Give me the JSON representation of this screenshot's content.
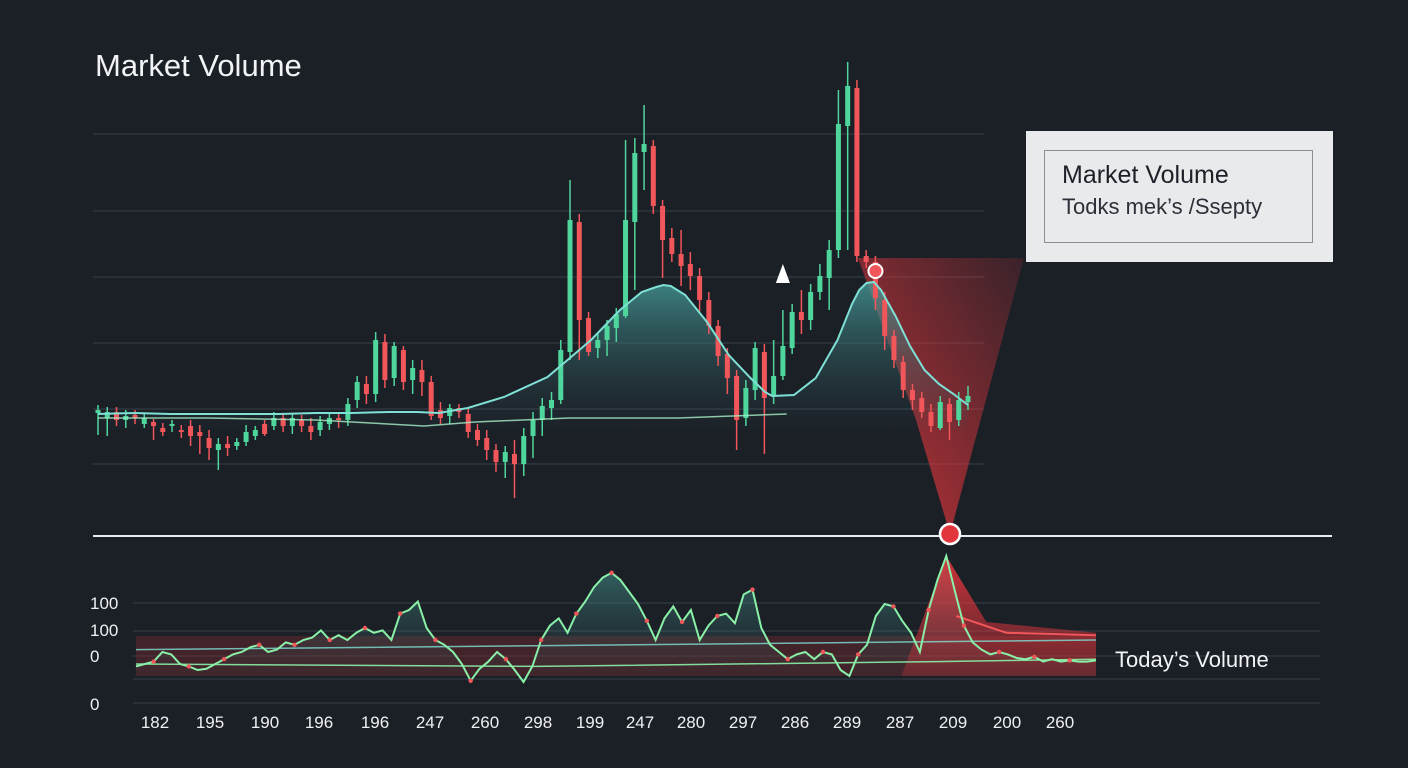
{
  "chart_data": {
    "type": "line",
    "title": "Market Volume",
    "price_panel": {
      "kind": "candlestick",
      "gridlines": true,
      "candles": [
        [
          413,
          410,
          405,
          435
        ],
        [
          418,
          412,
          407,
          436
        ],
        [
          412,
          420,
          407,
          426
        ],
        [
          420,
          416,
          410,
          428
        ],
        [
          415,
          418,
          410,
          424
        ],
        [
          424,
          418,
          413,
          428
        ],
        [
          422,
          426,
          419,
          440
        ],
        [
          428,
          432,
          423,
          436
        ],
        [
          426,
          424,
          420,
          432
        ],
        [
          430,
          432,
          425,
          438
        ],
        [
          426,
          436,
          420,
          446
        ],
        [
          432,
          436,
          425,
          454
        ],
        [
          438,
          448,
          430,
          460
        ],
        [
          450,
          444,
          438,
          470
        ],
        [
          444,
          448,
          436,
          456
        ],
        [
          446,
          442,
          438,
          450
        ],
        [
          442,
          432,
          425,
          446
        ],
        [
          436,
          430,
          426,
          440
        ],
        [
          424,
          434,
          420,
          436
        ],
        [
          426,
          418,
          412,
          430
        ],
        [
          418,
          426,
          414,
          432
        ],
        [
          426,
          418,
          414,
          434
        ],
        [
          420,
          426,
          415,
          432
        ],
        [
          426,
          432,
          418,
          440
        ],
        [
          430,
          422,
          416,
          436
        ],
        [
          424,
          418,
          412,
          430
        ],
        [
          418,
          420,
          412,
          428
        ],
        [
          420,
          404,
          398,
          426
        ],
        [
          400,
          382,
          376,
          408
        ],
        [
          384,
          394,
          376,
          404
        ],
        [
          394,
          340,
          332,
          402
        ],
        [
          342,
          380,
          334,
          388
        ],
        [
          378,
          346,
          342,
          386
        ],
        [
          350,
          382,
          346,
          390
        ],
        [
          380,
          368,
          360,
          394
        ],
        [
          370,
          382,
          360,
          396
        ],
        [
          382,
          416,
          376,
          420
        ],
        [
          410,
          418,
          402,
          424
        ],
        [
          416,
          408,
          404,
          424
        ],
        [
          408,
          412,
          404,
          418
        ],
        [
          414,
          432,
          408,
          438
        ],
        [
          430,
          440,
          424,
          446
        ],
        [
          438,
          450,
          430,
          460
        ],
        [
          450,
          462,
          444,
          472
        ],
        [
          462,
          452,
          446,
          478
        ],
        [
          454,
          464,
          440,
          498
        ],
        [
          464,
          436,
          428,
          476
        ],
        [
          436,
          420,
          412,
          458
        ],
        [
          420,
          406,
          398,
          436
        ],
        [
          408,
          400,
          392,
          420
        ],
        [
          400,
          350,
          340,
          404
        ],
        [
          352,
          220,
          180,
          360
        ],
        [
          222,
          320,
          214,
          360
        ],
        [
          318,
          352,
          312,
          356
        ],
        [
          348,
          340,
          334,
          358
        ],
        [
          340,
          326,
          320,
          356
        ],
        [
          328,
          314,
          308,
          342
        ],
        [
          316,
          220,
          140,
          318
        ],
        [
          222,
          153,
          138,
          290
        ],
        [
          152,
          144,
          105,
          190
        ],
        [
          146,
          206,
          140,
          214
        ],
        [
          206,
          240,
          200,
          278
        ],
        [
          238,
          254,
          228,
          262
        ],
        [
          254,
          266,
          230,
          286
        ],
        [
          264,
          276,
          252,
          290
        ],
        [
          276,
          300,
          268,
          312
        ],
        [
          300,
          326,
          292,
          334
        ],
        [
          326,
          356,
          320,
          366
        ],
        [
          354,
          378,
          348,
          394
        ],
        [
          376,
          420,
          370,
          450
        ],
        [
          418,
          388,
          380,
          426
        ],
        [
          390,
          348,
          342,
          400
        ],
        [
          352,
          398,
          344,
          454
        ],
        [
          396,
          376,
          340,
          404
        ],
        [
          376,
          346,
          310,
          380
        ],
        [
          348,
          312,
          304,
          354
        ],
        [
          312,
          320,
          290,
          334
        ],
        [
          320,
          292,
          284,
          330
        ],
        [
          292,
          276,
          264,
          300
        ],
        [
          278,
          250,
          240,
          310
        ],
        [
          250,
          124,
          90,
          258
        ],
        [
          126,
          86,
          62,
          250
        ],
        [
          88,
          256,
          80,
          262
        ],
        [
          256,
          262,
          250,
          268
        ],
        [
          262,
          298,
          256,
          310
        ],
        [
          300,
          336,
          292,
          350
        ],
        [
          336,
          360,
          330,
          368
        ],
        [
          362,
          390,
          356,
          398
        ],
        [
          390,
          400,
          384,
          410
        ],
        [
          398,
          412,
          392,
          418
        ],
        [
          412,
          426,
          404,
          432
        ],
        [
          428,
          402,
          396,
          430
        ],
        [
          404,
          422,
          398,
          440
        ],
        [
          420,
          400,
          392,
          426
        ],
        [
          402,
          396,
          386,
          410
        ]
      ],
      "smoothed_line": [
        [
          0,
          414
        ],
        [
          5,
          413
        ],
        [
          10,
          414
        ],
        [
          15,
          414
        ],
        [
          20,
          414
        ],
        [
          25,
          414
        ],
        [
          30,
          413
        ],
        [
          35,
          413
        ],
        [
          40,
          412
        ],
        [
          44,
          412
        ],
        [
          47,
          413
        ],
        [
          51,
          408
        ],
        [
          56,
          397
        ],
        [
          62,
          377
        ],
        [
          68,
          340
        ],
        [
          72,
          310
        ],
        [
          75,
          292
        ],
        [
          77,
          287
        ],
        [
          78,
          285
        ],
        [
          79,
          286
        ],
        [
          81,
          295
        ],
        [
          84,
          322
        ],
        [
          87,
          355
        ],
        [
          90,
          378
        ],
        [
          92,
          392
        ],
        [
          93,
          396
        ],
        [
          96,
          395
        ],
        [
          99,
          378
        ],
        [
          102,
          340
        ],
        [
          104,
          304
        ],
        [
          105,
          290
        ],
        [
          106,
          283
        ],
        [
          107,
          282
        ],
        [
          108,
          290
        ],
        [
          110,
          316
        ],
        [
          112,
          346
        ],
        [
          114,
          370
        ],
        [
          116,
          384
        ],
        [
          118,
          394
        ],
        [
          120,
          405
        ]
      ],
      "secondary_line": [
        [
          0,
          418
        ],
        [
          15,
          418
        ],
        [
          30,
          420
        ],
        [
          45,
          426
        ],
        [
          52,
          422
        ],
        [
          65,
          418
        ],
        [
          80,
          418
        ],
        [
          95,
          414
        ]
      ],
      "markers": [
        {
          "type": "triangle",
          "candle_index": 74
        },
        {
          "type": "circle",
          "candle_index": 84
        }
      ]
    },
    "volume_panel": {
      "y_tick_labels": [
        "100",
        "100",
        "0",
        "0"
      ],
      "x_tick_labels": [
        "182",
        "195",
        "190",
        "196",
        "196",
        "247",
        "260",
        "298",
        "199",
        "247",
        "280",
        "297",
        "286",
        "289",
        "287",
        "209",
        "200",
        "260"
      ],
      "highlight_index": 15,
      "series": [
        {
          "name": "Today's Volume",
          "values": [
            0.08,
            0.1,
            0.12,
            0.2,
            0.18,
            0.1,
            0.08,
            0.05,
            0.06,
            0.1,
            0.14,
            0.18,
            0.2,
            0.24,
            0.26,
            0.2,
            0.22,
            0.28,
            0.26,
            0.3,
            0.32,
            0.38,
            0.3,
            0.34,
            0.3,
            0.36,
            0.4,
            0.36,
            0.38,
            0.3,
            0.52,
            0.55,
            0.62,
            0.4,
            0.3,
            0.26,
            0.2,
            0.1,
            -0.04,
            0.06,
            0.12,
            0.2,
            0.14,
            0.05,
            -0.05,
            0.08,
            0.3,
            0.42,
            0.48,
            0.36,
            0.52,
            0.62,
            0.74,
            0.82,
            0.86,
            0.8,
            0.7,
            0.6,
            0.46,
            0.3,
            0.48,
            0.58,
            0.45,
            0.55,
            0.3,
            0.42,
            0.5,
            0.52,
            0.44,
            0.68,
            0.72,
            0.4,
            0.26,
            0.2,
            0.14,
            0.18,
            0.2,
            0.14,
            0.2,
            0.18,
            0.05,
            0.0,
            0.18,
            0.26,
            0.5,
            0.6,
            0.58,
            0.46,
            0.36,
            0.2,
            0.55,
            0.8,
            1.0,
            0.7,
            0.42,
            0.28,
            0.22,
            0.18,
            0.2,
            0.18,
            0.15,
            0.14,
            0.16,
            0.12,
            0.14,
            0.12,
            0.13,
            0.12,
            0.12,
            0.13
          ]
        }
      ],
      "baseline_level": 0.3
    }
  },
  "callout": {
    "title": "Market Volume",
    "subtitle": "Todks mek’s /Ssepty"
  },
  "today_label": "Today’s Volume",
  "colors": {
    "background": "#1b1f26",
    "up": "#4fd69c",
    "down": "#f0565a",
    "line": "#7fe0d6",
    "fill": "#3d8a8a",
    "volume_line": "#8af0a8",
    "highlight": "#e0363c"
  }
}
